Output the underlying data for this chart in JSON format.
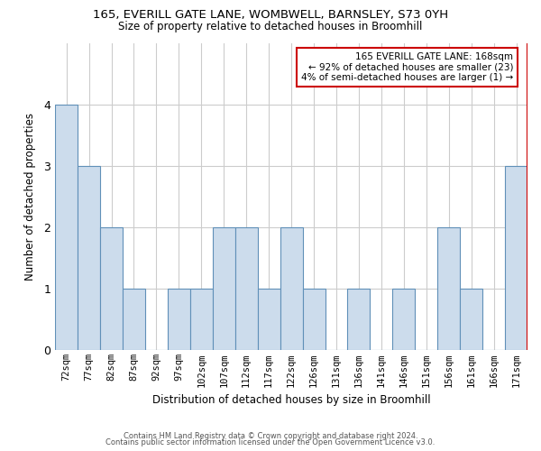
{
  "title1": "165, EVERILL GATE LANE, WOMBWELL, BARNSLEY, S73 0YH",
  "title2": "Size of property relative to detached houses in Broomhill",
  "xlabel": "Distribution of detached houses by size in Broomhill",
  "ylabel": "Number of detached properties",
  "footer1": "Contains HM Land Registry data © Crown copyright and database right 2024.",
  "footer2": "Contains public sector information licensed under the Open Government Licence v3.0.",
  "categories": [
    "72sqm",
    "77sqm",
    "82sqm",
    "87sqm",
    "92sqm",
    "97sqm",
    "102sqm",
    "107sqm",
    "112sqm",
    "117sqm",
    "122sqm",
    "126sqm",
    "131sqm",
    "136sqm",
    "141sqm",
    "146sqm",
    "151sqm",
    "156sqm",
    "161sqm",
    "166sqm",
    "171sqm"
  ],
  "values": [
    4,
    3,
    2,
    1,
    0,
    1,
    1,
    2,
    2,
    1,
    2,
    1,
    0,
    1,
    0,
    1,
    0,
    2,
    1,
    0,
    3
  ],
  "bar_color": "#ccdcec",
  "bar_edge_color": "#6090b8",
  "highlight_index": 20,
  "highlight_color": "#cc0000",
  "annotation_text": "165 EVERILL GATE LANE: 168sqm\n← 92% of detached houses are smaller (23)\n4% of semi-detached houses are larger (1) →",
  "ylim": [
    0,
    5
  ],
  "yticks": [
    0,
    1,
    2,
    3,
    4
  ],
  "grid_color": "#cccccc",
  "background_color": "#ffffff"
}
